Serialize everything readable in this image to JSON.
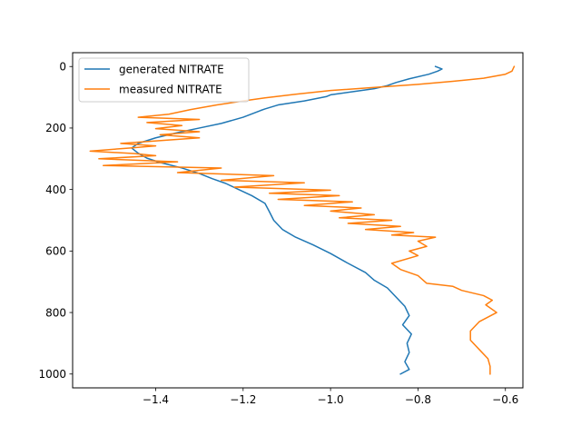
{
  "chart_data": {
    "type": "line",
    "title": "",
    "xlabel": "",
    "ylabel": "",
    "xlim": [
      -1.59,
      -0.56
    ],
    "ylim": [
      1045,
      -45
    ],
    "y_inverted": true,
    "grid": false,
    "legend_placement": "top-left",
    "x_ticks": [
      -1.4,
      -1.2,
      -1.0,
      -0.8,
      -0.6
    ],
    "x_tick_labels": [
      "−1.4",
      "−1.2",
      "−1.0",
      "−0.8",
      "−0.6"
    ],
    "y_ticks": [
      0,
      200,
      400,
      600,
      800,
      1000
    ],
    "y_tick_labels": [
      "0",
      "200",
      "400",
      "600",
      "800",
      "1000"
    ],
    "series": [
      {
        "name": "generated NITRATE",
        "color": "#1f77b4",
        "points": [
          [
            -0.76,
            0
          ],
          [
            -0.745,
            8
          ],
          [
            -0.755,
            15
          ],
          [
            -0.775,
            25
          ],
          [
            -0.82,
            40
          ],
          [
            -0.85,
            52
          ],
          [
            -0.87,
            62
          ],
          [
            -0.9,
            72
          ],
          [
            -0.95,
            82
          ],
          [
            -1.0,
            92
          ],
          [
            -1.01,
            98
          ],
          [
            -1.06,
            112
          ],
          [
            -1.12,
            125
          ],
          [
            -1.15,
            138
          ],
          [
            -1.16,
            143
          ],
          [
            -1.2,
            165
          ],
          [
            -1.25,
            185
          ],
          [
            -1.3,
            200
          ],
          [
            -1.35,
            215
          ],
          [
            -1.4,
            232
          ],
          [
            -1.44,
            250
          ],
          [
            -1.455,
            265
          ],
          [
            -1.44,
            282
          ],
          [
            -1.42,
            298
          ],
          [
            -1.39,
            312
          ],
          [
            -1.34,
            330
          ],
          [
            -1.3,
            348
          ],
          [
            -1.27,
            365
          ],
          [
            -1.24,
            380
          ],
          [
            -1.21,
            400
          ],
          [
            -1.18,
            420
          ],
          [
            -1.15,
            445
          ],
          [
            -1.14,
            472
          ],
          [
            -1.13,
            500
          ],
          [
            -1.11,
            530
          ],
          [
            -1.08,
            555
          ],
          [
            -1.04,
            580
          ],
          [
            -1.0,
            608
          ],
          [
            -0.96,
            640
          ],
          [
            -0.92,
            670
          ],
          [
            -0.9,
            695
          ],
          [
            -0.87,
            720
          ],
          [
            -0.85,
            750
          ],
          [
            -0.83,
            780
          ],
          [
            -0.82,
            810
          ],
          [
            -0.835,
            840
          ],
          [
            -0.815,
            870
          ],
          [
            -0.825,
            900
          ],
          [
            -0.82,
            930
          ],
          [
            -0.83,
            960
          ],
          [
            -0.82,
            985
          ],
          [
            -0.84,
            1000
          ]
        ]
      },
      {
        "name": "measured NITRATE",
        "color": "#ff7f0e",
        "points": [
          [
            -0.58,
            0
          ],
          [
            -0.585,
            15
          ],
          [
            -0.6,
            25
          ],
          [
            -0.65,
            38
          ],
          [
            -0.72,
            48
          ],
          [
            -0.8,
            58
          ],
          [
            -0.9,
            68
          ],
          [
            -1.0,
            78
          ],
          [
            -1.08,
            90
          ],
          [
            -1.15,
            102
          ],
          [
            -1.2,
            112
          ],
          [
            -1.26,
            125
          ],
          [
            -1.32,
            140
          ],
          [
            -1.37,
            155
          ],
          [
            -1.44,
            165
          ],
          [
            -1.3,
            172
          ],
          [
            -1.42,
            182
          ],
          [
            -1.34,
            192
          ],
          [
            -1.4,
            202
          ],
          [
            -1.3,
            212
          ],
          [
            -1.39,
            222
          ],
          [
            -1.3,
            232
          ],
          [
            -1.48,
            250
          ],
          [
            -1.4,
            258
          ],
          [
            -1.46,
            265
          ],
          [
            -1.55,
            275
          ],
          [
            -1.45,
            283
          ],
          [
            -1.4,
            290
          ],
          [
            -1.53,
            300
          ],
          [
            -1.35,
            310
          ],
          [
            -1.52,
            322
          ],
          [
            -1.25,
            330
          ],
          [
            -1.35,
            345
          ],
          [
            -1.13,
            355
          ],
          [
            -1.25,
            370
          ],
          [
            -1.06,
            378
          ],
          [
            -1.22,
            392
          ],
          [
            -1.0,
            402
          ],
          [
            -1.14,
            412
          ],
          [
            -0.98,
            420
          ],
          [
            -1.12,
            432
          ],
          [
            -0.95,
            440
          ],
          [
            -1.06,
            452
          ],
          [
            -0.93,
            460
          ],
          [
            -1.0,
            470
          ],
          [
            -0.9,
            482
          ],
          [
            -0.98,
            492
          ],
          [
            -0.86,
            500
          ],
          [
            -0.96,
            510
          ],
          [
            -0.84,
            520
          ],
          [
            -0.92,
            530
          ],
          [
            -0.81,
            540
          ],
          [
            -0.86,
            548
          ],
          [
            -0.76,
            555
          ],
          [
            -0.8,
            568
          ],
          [
            -0.78,
            585
          ],
          [
            -0.82,
            600
          ],
          [
            -0.8,
            615
          ],
          [
            -0.86,
            640
          ],
          [
            -0.84,
            660
          ],
          [
            -0.8,
            680
          ],
          [
            -0.78,
            705
          ],
          [
            -0.72,
            715
          ],
          [
            -0.7,
            728
          ],
          [
            -0.65,
            745
          ],
          [
            -0.63,
            760
          ],
          [
            -0.645,
            775
          ],
          [
            -0.62,
            800
          ],
          [
            -0.66,
            830
          ],
          [
            -0.68,
            860
          ],
          [
            -0.68,
            890
          ],
          [
            -0.66,
            920
          ],
          [
            -0.64,
            950
          ],
          [
            -0.635,
            975
          ],
          [
            -0.635,
            1000
          ]
        ]
      }
    ]
  }
}
